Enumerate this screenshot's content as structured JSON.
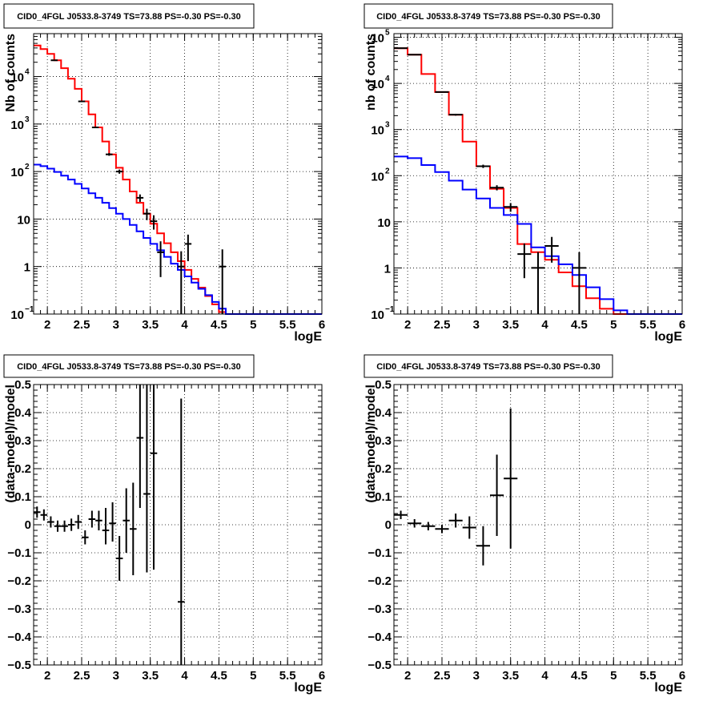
{
  "chart_data": [
    {
      "type": "line",
      "title": "CID0_4FGL J0533.8-3749 TS=73.88 PS=-0.30 PS=-0.30",
      "xlabel": "logE",
      "ylabel": "Nb of counts",
      "xlim": [
        1.8,
        6
      ],
      "ylim": [
        0.1,
        80000
      ],
      "yscale": "log",
      "grid": true,
      "x_ticks": [
        "2",
        "2.5",
        "3",
        "3.5",
        "4",
        "4.5",
        "5",
        "5.5",
        "6"
      ],
      "y_ticks": [
        {
          "m": "10",
          "e": "−1"
        },
        {
          "m": "1",
          "e": ""
        },
        {
          "m": "10",
          "e": ""
        },
        {
          "m": "10",
          "e": "2"
        },
        {
          "m": "10",
          "e": "3"
        },
        {
          "m": "10",
          "e": "4"
        }
      ],
      "bin_edges": [
        1.8,
        1.9,
        2.0,
        2.1,
        2.2,
        2.3,
        2.4,
        2.5,
        2.6,
        2.7,
        2.8,
        2.9,
        3.0,
        3.1,
        3.2,
        3.3,
        3.4,
        3.5,
        3.6,
        3.7,
        3.8,
        3.9,
        4.0,
        4.1,
        4.2,
        4.3,
        4.4,
        4.5,
        4.6,
        4.7,
        4.8,
        4.9,
        5.0,
        5.1,
        5.2,
        5.3,
        5.4,
        5.5,
        5.6,
        5.7,
        5.8,
        5.9,
        6.0
      ],
      "series": [
        {
          "color": "#ff0000",
          "step": true,
          "values": [
            45000,
            38000,
            30000,
            22000,
            15000,
            9000,
            5500,
            3000,
            1600,
            850,
            430,
            230,
            120,
            68,
            38,
            22,
            13,
            8,
            5,
            3.1,
            2,
            1.3,
            0.85,
            0.55,
            0.36,
            0.24,
            0.16,
            0.11,
            0.1,
            0.1,
            0.1,
            0.1,
            0.1,
            0.1,
            0.1,
            0.1,
            0.1,
            0.1,
            0.1,
            0.1,
            0.1,
            0.1
          ]
        },
        {
          "color": "#0000ff",
          "step": true,
          "values": [
            140,
            130,
            115,
            98,
            82,
            68,
            55,
            44,
            35,
            28,
            22,
            17,
            13,
            10,
            7.5,
            5.5,
            4,
            3,
            2.2,
            1.6,
            1.15,
            0.85,
            0.62,
            0.46,
            0.34,
            0.25,
            0.18,
            0.13,
            0.1,
            0.1,
            0.1,
            0.1,
            0.1,
            0.1,
            0.1,
            0.1,
            0.1,
            0.1,
            0.1,
            0.1,
            0.1,
            0.1
          ]
        }
      ],
      "points": [
        {
          "x": 2.1,
          "y": 22000,
          "xerr": 0.05,
          "ylo": 21700,
          "yhi": 22300
        },
        {
          "x": 2.5,
          "y": 3000,
          "xerr": 0.05,
          "ylo": 2900,
          "yhi": 3100
        },
        {
          "x": 2.7,
          "y": 850,
          "xerr": 0.05,
          "ylo": 820,
          "yhi": 880
        },
        {
          "x": 2.9,
          "y": 230,
          "xerr": 0.05,
          "ylo": 215,
          "yhi": 245
        },
        {
          "x": 3.05,
          "y": 100,
          "xerr": 0.05,
          "ylo": 90,
          "yhi": 110
        },
        {
          "x": 3.35,
          "y": 28,
          "xerr": 0.05,
          "ylo": 23,
          "yhi": 33
        },
        {
          "x": 3.45,
          "y": 13,
          "xerr": 0.05,
          "ylo": 9.5,
          "yhi": 16.5
        },
        {
          "x": 3.55,
          "y": 9,
          "xerr": 0.05,
          "ylo": 6,
          "yhi": 12
        },
        {
          "x": 3.65,
          "y": 2,
          "xerr": 0.05,
          "ylo": 0.6,
          "yhi": 3.4
        },
        {
          "x": 3.95,
          "y": 1,
          "xerr": 0.05,
          "ylo": 0.1,
          "yhi": 2.1
        },
        {
          "x": 4.05,
          "y": 3,
          "xerr": 0.05,
          "ylo": 1.3,
          "yhi": 4.7
        },
        {
          "x": 4.55,
          "y": 1,
          "xerr": 0.05,
          "ylo": 0.1,
          "yhi": 2.3
        }
      ]
    },
    {
      "type": "line",
      "title": "CID0_4FGL J0533.8-3749 TS=73.88 PS=-0.30 PS=-0.30",
      "xlabel": "logE",
      "ylabel": "nb of counts",
      "xlim": [
        1.8,
        6
      ],
      "ylim": [
        0.1,
        120000
      ],
      "yscale": "log",
      "grid": true,
      "x_ticks": [
        "2",
        "2.5",
        "3",
        "3.5",
        "4",
        "4.5",
        "5",
        "5.5",
        "6"
      ],
      "y_ticks": [
        {
          "m": "10",
          "e": "−1"
        },
        {
          "m": "1",
          "e": ""
        },
        {
          "m": "10",
          "e": ""
        },
        {
          "m": "10",
          "e": "2"
        },
        {
          "m": "10",
          "e": "3"
        },
        {
          "m": "10",
          "e": "4"
        },
        {
          "m": "10",
          "e": "5"
        }
      ],
      "bin_edges": [
        1.8,
        2.0,
        2.2,
        2.4,
        2.6,
        2.8,
        3.0,
        3.2,
        3.4,
        3.6,
        3.8,
        4.0,
        4.2,
        4.4,
        4.6,
        4.8,
        5.0,
        5.2,
        5.4,
        5.6,
        5.8,
        6.0
      ],
      "series": [
        {
          "color": "#ff0000",
          "step": true,
          "values": [
            58000,
            42000,
            16000,
            6500,
            2100,
            550,
            160,
            52,
            20,
            3.3,
            2.2,
            1.5,
            0.8,
            0.4,
            0.22,
            0.13,
            0.1,
            0.1,
            0.1,
            0.1,
            0.1
          ]
        },
        {
          "color": "#0000ff",
          "step": true,
          "values": [
            260,
            240,
            170,
            120,
            78,
            50,
            32,
            20,
            14,
            9,
            2.8,
            1.8,
            1.2,
            0.7,
            0.38,
            0.21,
            0.12,
            0.1,
            0.1,
            0.1,
            0.1
          ]
        }
      ],
      "points": [
        {
          "x": 1.9,
          "y": 58000,
          "xerr": 0.1,
          "ylo": 57000,
          "yhi": 59000
        },
        {
          "x": 2.1,
          "y": 42000,
          "xerr": 0.1,
          "ylo": 41300,
          "yhi": 42700
        },
        {
          "x": 2.5,
          "y": 6500,
          "xerr": 0.1,
          "ylo": 6300,
          "yhi": 6700
        },
        {
          "x": 2.7,
          "y": 2100,
          "xerr": 0.1,
          "ylo": 2000,
          "yhi": 2200
        },
        {
          "x": 3.1,
          "y": 160,
          "xerr": 0.1,
          "ylo": 147,
          "yhi": 173
        },
        {
          "x": 3.3,
          "y": 55,
          "xerr": 0.1,
          "ylo": 48,
          "yhi": 62
        },
        {
          "x": 3.5,
          "y": 21,
          "xerr": 0.1,
          "ylo": 16.5,
          "yhi": 25.5
        },
        {
          "x": 3.7,
          "y": 2,
          "xerr": 0.1,
          "ylo": 0.6,
          "yhi": 3.4
        },
        {
          "x": 3.9,
          "y": 1,
          "xerr": 0.1,
          "ylo": 0.1,
          "yhi": 2.2
        },
        {
          "x": 4.1,
          "y": 3,
          "xerr": 0.1,
          "ylo": 1.3,
          "yhi": 4.7
        },
        {
          "x": 4.5,
          "y": 1,
          "xerr": 0.1,
          "ylo": 0.1,
          "yhi": 2.2
        }
      ]
    },
    {
      "type": "scatter",
      "title": "CID0_4FGL J0533.8-3749 TS=73.88 PS=-0.30 PS=-0.30",
      "xlabel": "logE",
      "ylabel": "(data-model)/model",
      "xlim": [
        1.8,
        6
      ],
      "ylim": [
        -0.5,
        0.5
      ],
      "yscale": "linear",
      "grid": true,
      "x_ticks": [
        "2",
        "2.5",
        "3",
        "3.5",
        "4",
        "4.5",
        "5",
        "5.5",
        "6"
      ],
      "y_ticks": [
        "−0.5",
        "−0.4",
        "−0.3",
        "−0.2",
        "−0.1",
        "0",
        "0.1",
        "0.2",
        "0.3",
        "0.4",
        "0.5"
      ],
      "points": [
        {
          "x": 1.85,
          "y": 0.045,
          "xerr": 0.05,
          "ylo": 0.025,
          "yhi": 0.065
        },
        {
          "x": 1.95,
          "y": 0.035,
          "xerr": 0.05,
          "ylo": 0.015,
          "yhi": 0.055
        },
        {
          "x": 2.05,
          "y": 0.01,
          "xerr": 0.05,
          "ylo": -0.01,
          "yhi": 0.03
        },
        {
          "x": 2.15,
          "y": -0.005,
          "xerr": 0.05,
          "ylo": -0.025,
          "yhi": 0.015
        },
        {
          "x": 2.25,
          "y": -0.005,
          "xerr": 0.05,
          "ylo": -0.025,
          "yhi": 0.015
        },
        {
          "x": 2.35,
          "y": 0.0,
          "xerr": 0.05,
          "ylo": -0.022,
          "yhi": 0.022
        },
        {
          "x": 2.45,
          "y": 0.01,
          "xerr": 0.05,
          "ylo": -0.015,
          "yhi": 0.035
        },
        {
          "x": 2.55,
          "y": -0.045,
          "xerr": 0.05,
          "ylo": -0.07,
          "yhi": -0.02
        },
        {
          "x": 2.65,
          "y": 0.02,
          "xerr": 0.05,
          "ylo": -0.01,
          "yhi": 0.05
        },
        {
          "x": 2.75,
          "y": 0.015,
          "xerr": 0.05,
          "ylo": -0.02,
          "yhi": 0.05
        },
        {
          "x": 2.85,
          "y": -0.02,
          "xerr": 0.05,
          "ylo": -0.07,
          "yhi": 0.06
        },
        {
          "x": 2.95,
          "y": 0.005,
          "xerr": 0.05,
          "ylo": -0.06,
          "yhi": 0.08
        },
        {
          "x": 3.05,
          "y": -0.12,
          "xerr": 0.05,
          "ylo": -0.2,
          "yhi": -0.04
        },
        {
          "x": 3.15,
          "y": 0.015,
          "xerr": 0.05,
          "ylo": -0.1,
          "yhi": 0.13
        },
        {
          "x": 3.25,
          "y": -0.015,
          "xerr": 0.05,
          "ylo": -0.18,
          "yhi": 0.15
        },
        {
          "x": 3.35,
          "y": 0.31,
          "xerr": 0.05,
          "ylo": 0.06,
          "yhi": 0.5
        },
        {
          "x": 3.45,
          "y": 0.11,
          "xerr": 0.05,
          "ylo": -0.17,
          "yhi": 0.5
        },
        {
          "x": 3.55,
          "y": 0.255,
          "xerr": 0.05,
          "ylo": -0.16,
          "yhi": 0.5
        },
        {
          "x": 3.95,
          "y": -0.275,
          "xerr": 0.05,
          "ylo": -0.5,
          "yhi": 0.45
        }
      ]
    },
    {
      "type": "scatter",
      "title": "CID0_4FGL J0533.8-3749 TS=73.88 PS=-0.30 PS=-0.30",
      "xlabel": "logE",
      "ylabel": "(data-model)/model",
      "xlim": [
        1.8,
        6
      ],
      "ylim": [
        -0.5,
        0.5
      ],
      "yscale": "linear",
      "grid": true,
      "x_ticks": [
        "2",
        "2.5",
        "3",
        "3.5",
        "4",
        "4.5",
        "5",
        "5.5",
        "6"
      ],
      "y_ticks": [
        "−0.5",
        "−0.4",
        "−0.3",
        "−0.2",
        "−0.1",
        "0",
        "0.1",
        "0.2",
        "0.3",
        "0.4",
        "0.5"
      ],
      "points": [
        {
          "x": 1.9,
          "y": 0.035,
          "xerr": 0.1,
          "ylo": 0.02,
          "yhi": 0.05
        },
        {
          "x": 2.1,
          "y": 0.005,
          "xerr": 0.1,
          "ylo": -0.01,
          "yhi": 0.02
        },
        {
          "x": 2.3,
          "y": -0.005,
          "xerr": 0.1,
          "ylo": -0.02,
          "yhi": 0.01
        },
        {
          "x": 2.5,
          "y": -0.015,
          "xerr": 0.1,
          "ylo": -0.03,
          "yhi": 0.0
        },
        {
          "x": 2.7,
          "y": 0.015,
          "xerr": 0.1,
          "ylo": -0.01,
          "yhi": 0.04
        },
        {
          "x": 2.9,
          "y": -0.01,
          "xerr": 0.1,
          "ylo": -0.05,
          "yhi": 0.03
        },
        {
          "x": 3.1,
          "y": -0.075,
          "xerr": 0.1,
          "ylo": -0.145,
          "yhi": -0.005
        },
        {
          "x": 3.3,
          "y": 0.105,
          "xerr": 0.1,
          "ylo": -0.04,
          "yhi": 0.25
        },
        {
          "x": 3.5,
          "y": 0.165,
          "xerr": 0.1,
          "ylo": -0.085,
          "yhi": 0.415
        }
      ]
    }
  ]
}
